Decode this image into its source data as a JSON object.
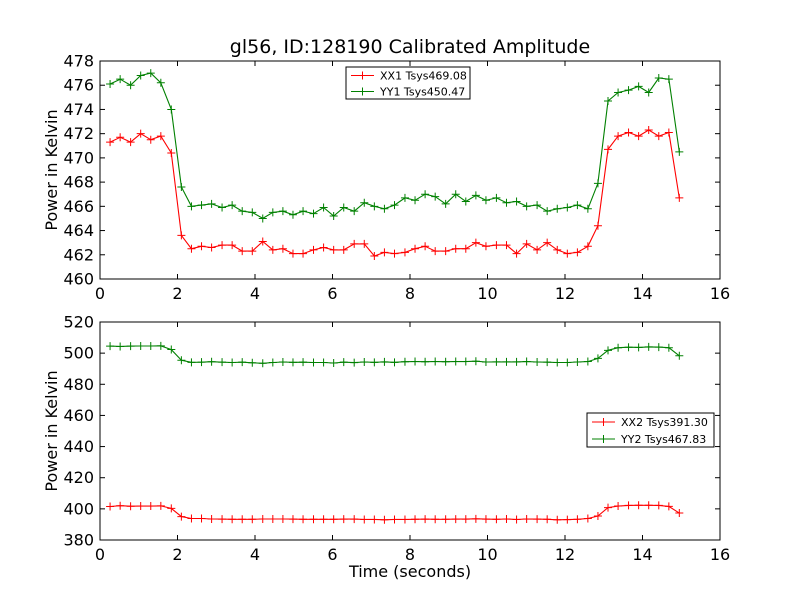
{
  "chart_data": [
    {
      "type": "line",
      "title": "gl56, ID:128190 Calibrated Amplitude",
      "xlabel": "",
      "ylabel": "Power in Kelvin",
      "xlim": [
        0,
        16
      ],
      "ylim": [
        460,
        478
      ],
      "xticks": [
        0,
        2,
        4,
        6,
        8,
        10,
        12,
        14,
        16
      ],
      "yticks": [
        460,
        462,
        464,
        466,
        468,
        470,
        472,
        474,
        476,
        478
      ],
      "grid": false,
      "legend_position": "top-center",
      "x": [
        0.26,
        0.52,
        0.79,
        1.05,
        1.31,
        1.57,
        1.84,
        2.1,
        2.36,
        2.62,
        2.88,
        3.15,
        3.41,
        3.67,
        3.93,
        4.2,
        4.46,
        4.72,
        4.98,
        5.24,
        5.51,
        5.77,
        6.03,
        6.29,
        6.56,
        6.82,
        7.08,
        7.34,
        7.6,
        7.87,
        8.13,
        8.39,
        8.65,
        8.92,
        9.18,
        9.44,
        9.7,
        9.96,
        10.23,
        10.49,
        10.75,
        11.01,
        11.28,
        11.54,
        11.8,
        12.06,
        12.32,
        12.59,
        12.85,
        13.11,
        13.37,
        13.64,
        13.9,
        14.16,
        14.42,
        14.68,
        14.95,
        15.21
      ],
      "series": [
        {
          "name": "XX1 Tsys469.08",
          "color": "#ff0000",
          "values": [
            471.3,
            471.7,
            471.3,
            472.0,
            471.5,
            471.8,
            470.4,
            463.6,
            462.5,
            462.7,
            462.6,
            462.8,
            462.8,
            462.3,
            462.3,
            463.1,
            462.4,
            462.5,
            462.1,
            462.1,
            462.4,
            462.6,
            462.4,
            462.4,
            462.9,
            462.9,
            461.9,
            462.2,
            462.1,
            462.2,
            462.5,
            462.7,
            462.3,
            462.3,
            462.5,
            462.5,
            463.0,
            462.7,
            462.8,
            462.8,
            462.1,
            462.9,
            462.4,
            463.0,
            462.4,
            462.1,
            462.2,
            462.7,
            464.4,
            470.7,
            471.8,
            472.1,
            471.8,
            472.3,
            471.8,
            472.1,
            466.7,
            null
          ]
        },
        {
          "name": "YY1 Tsys450.47",
          "color": "#008000",
          "values": [
            476.1,
            476.5,
            476.0,
            476.8,
            477.0,
            476.2,
            474.0,
            467.6,
            466.0,
            466.1,
            466.2,
            465.9,
            466.1,
            465.6,
            465.5,
            465.0,
            465.5,
            465.6,
            465.3,
            465.6,
            465.4,
            465.9,
            465.2,
            465.9,
            465.6,
            466.3,
            466.0,
            465.8,
            466.1,
            466.7,
            466.5,
            467.0,
            466.8,
            466.2,
            467.0,
            466.4,
            466.9,
            466.5,
            466.7,
            466.3,
            466.4,
            466.0,
            466.1,
            465.6,
            465.8,
            465.9,
            466.1,
            465.8,
            467.9,
            474.7,
            475.4,
            475.6,
            475.9,
            475.4,
            476.6,
            476.5,
            470.5,
            null
          ]
        }
      ]
    },
    {
      "type": "line",
      "title": "",
      "xlabel": "Time (seconds)",
      "ylabel": "Power in Kelvin",
      "xlim": [
        0,
        16
      ],
      "ylim": [
        380,
        520
      ],
      "xticks": [
        0,
        2,
        4,
        6,
        8,
        10,
        12,
        14,
        16
      ],
      "yticks": [
        380,
        400,
        420,
        440,
        460,
        480,
        500,
        520
      ],
      "grid": false,
      "legend_position": "center-right",
      "x": [
        0.26,
        0.52,
        0.79,
        1.05,
        1.31,
        1.57,
        1.84,
        2.1,
        2.36,
        2.62,
        2.88,
        3.15,
        3.41,
        3.67,
        3.93,
        4.2,
        4.46,
        4.72,
        4.98,
        5.24,
        5.51,
        5.77,
        6.03,
        6.29,
        6.56,
        6.82,
        7.08,
        7.34,
        7.6,
        7.87,
        8.13,
        8.39,
        8.65,
        8.92,
        9.18,
        9.44,
        9.7,
        9.96,
        10.23,
        10.49,
        10.75,
        11.01,
        11.28,
        11.54,
        11.8,
        12.06,
        12.32,
        12.59,
        12.85,
        13.11,
        13.37,
        13.64,
        13.9,
        14.16,
        14.42,
        14.68,
        14.95,
        15.21
      ],
      "series": [
        {
          "name": "XX2 Tsys391.30",
          "color": "#ff0000",
          "values": [
            401.5,
            402.0,
            401.7,
            401.8,
            401.8,
            401.9,
            400.3,
            395.0,
            393.8,
            393.8,
            393.5,
            393.4,
            393.3,
            393.3,
            393.3,
            393.5,
            393.5,
            393.5,
            393.4,
            393.3,
            393.3,
            393.3,
            393.3,
            393.4,
            393.4,
            393.2,
            393.2,
            393.0,
            393.2,
            393.2,
            393.3,
            393.4,
            393.3,
            393.3,
            393.4,
            393.4,
            393.6,
            393.4,
            393.3,
            393.5,
            393.2,
            393.5,
            393.4,
            393.3,
            393.0,
            393.1,
            393.3,
            393.8,
            395.4,
            400.8,
            401.8,
            402.2,
            402.3,
            402.3,
            402.2,
            401.6,
            397.3,
            null
          ]
        },
        {
          "name": "YY2 Tsys467.83",
          "color": "#008000",
          "values": [
            504.5,
            504.3,
            504.5,
            504.6,
            504.6,
            504.7,
            502.3,
            495.4,
            494.1,
            494.2,
            494.5,
            494.2,
            494.0,
            494.2,
            493.8,
            493.5,
            494.0,
            494.3,
            494.1,
            494.2,
            494.0,
            494.0,
            493.7,
            494.2,
            493.9,
            494.3,
            494.1,
            494.4,
            494.1,
            494.5,
            494.6,
            494.5,
            494.6,
            494.5,
            494.6,
            494.6,
            494.8,
            494.3,
            494.4,
            494.4,
            494.4,
            494.6,
            494.3,
            494.2,
            494.0,
            494.0,
            494.3,
            494.6,
            496.6,
            501.8,
            503.5,
            503.8,
            503.7,
            504.0,
            503.9,
            503.5,
            498.3,
            null
          ]
        }
      ]
    }
  ]
}
